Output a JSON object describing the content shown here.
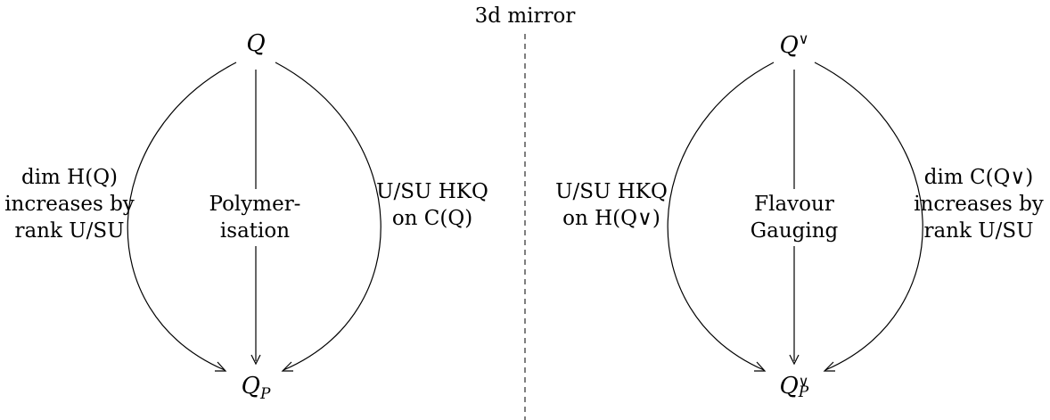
{
  "title": "3d mirror",
  "left": {
    "top_node": "Q",
    "bottom_node_base": "Q",
    "bottom_node_sub": "P",
    "center_line1": "Polymer-",
    "center_line2": "isation",
    "outer_line1": "dim H(Q)",
    "outer_line2": "increases by",
    "outer_line3": "rank U/SU",
    "inner_line1": "U/SU HKQ",
    "inner_line2": "on C(Q)"
  },
  "right": {
    "top_node_base": "Q",
    "top_node_sup": "∨",
    "bottom_node_base": "Q",
    "bottom_node_sup": "∨",
    "bottom_node_sub": "P",
    "center_line1": "Flavour",
    "center_line2": "Gauging",
    "inner_line1": "U/SU HKQ",
    "inner_line2": "on H(Q∨)",
    "outer_line1": "dim C(Q∨)",
    "outer_line2": "increases by",
    "outer_line3": "rank U/SU"
  }
}
